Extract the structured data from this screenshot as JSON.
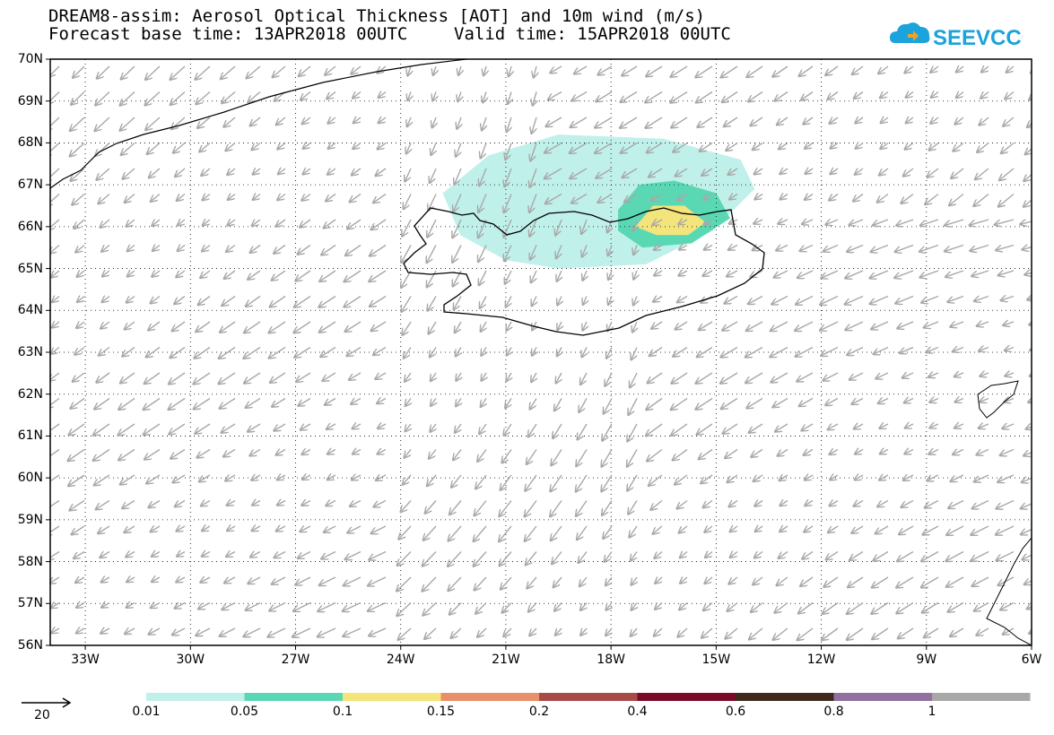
{
  "header": {
    "title_line1": "DREAM8-assim: Aerosol Optical Thickness [AOT] and 10m wind (m/s)",
    "title_line2_left": "Forecast base time: 13APR2018 00UTC",
    "title_line2_right": "Valid time: 15APR2018 00UTC",
    "logo_text": "SEEVCCC",
    "logo_color": "#1aa3dc"
  },
  "axes": {
    "lat_labels": [
      "70N",
      "69N",
      "68N",
      "67N",
      "66N",
      "65N",
      "64N",
      "63N",
      "62N",
      "61N",
      "60N",
      "59N",
      "58N",
      "57N",
      "56N"
    ],
    "lon_labels": [
      "33W",
      "30W",
      "27W",
      "24W",
      "21W",
      "18W",
      "15W",
      "12W",
      "9W",
      "6W"
    ]
  },
  "wind_reference": {
    "value": "20"
  },
  "legend": {
    "thresholds": [
      "0.01",
      "0.05",
      "0.1",
      "0.15",
      "0.2",
      "0.4",
      "0.6",
      "0.8",
      "1"
    ],
    "colors": [
      "#c0f0ea",
      "#5ad8b4",
      "#f4e47c",
      "#e8906a",
      "#a84a46",
      "#7a0a28",
      "#3e2a1e",
      "#9070a0",
      "#a8a8a8"
    ]
  },
  "chart_data": {
    "type": "heatmap",
    "variable": "Aerosol Optical Thickness [AOT] and 10m wind (m/s)",
    "lon_range": [
      -34,
      -6
    ],
    "lat_range": [
      56,
      70
    ],
    "aot_contours": [
      {
        "level": 0.01,
        "color": "#c0f0ea",
        "center_lon": -17.5,
        "center_lat": 66.4,
        "note": "plume north of Iceland"
      },
      {
        "level": 0.05,
        "color": "#5ad8b4",
        "center_lon": -16.6,
        "center_lat": 66.2
      },
      {
        "level": 0.1,
        "color": "#f4e47c",
        "center_lon": -16.3,
        "center_lat": 66.0
      }
    ],
    "wind_flow": "predominantly northerly/north-easterly to south-westward over the domain"
  }
}
